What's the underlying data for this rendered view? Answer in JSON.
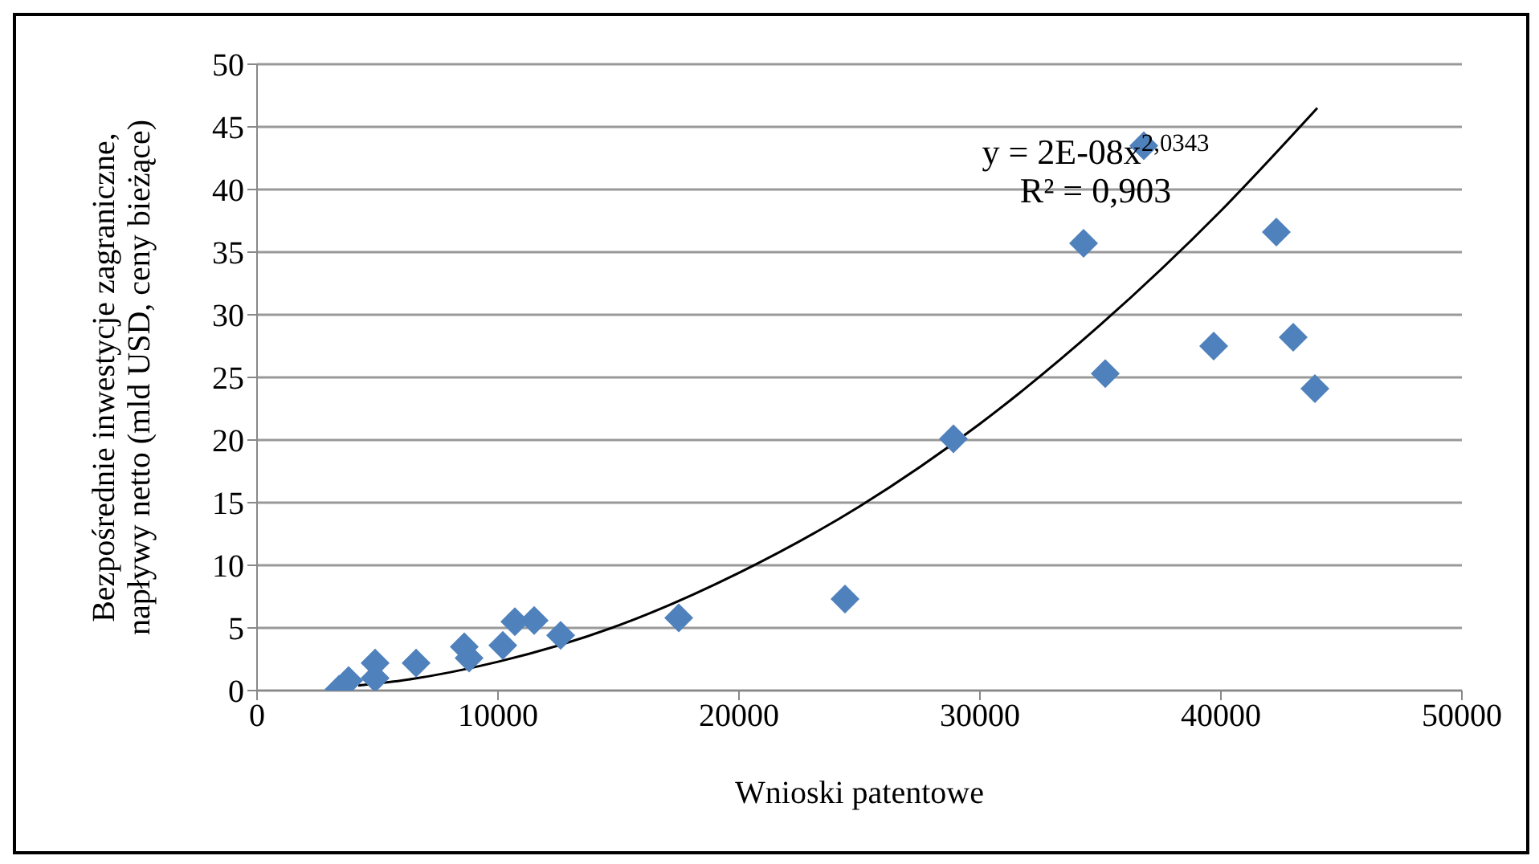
{
  "chart_data": {
    "type": "scatter",
    "xlabel": "Wnioski patentowe",
    "ylabel": "Bezpośrednie inwestycje zagraniczne, napływy netto (mld USD, ceny bieżące)",
    "annotations": [
      "y = 2E-08x$^{2,0343}$",
      "R² = 0,903"
    ],
    "series": [
      {
        "color": "#4f81bd",
        "marker": "diamond",
        "x": [
          3400,
          3800,
          4900,
          4900,
          6600,
          8600,
          8800,
          10200,
          10700,
          11500,
          12600,
          17500,
          24400,
          28900,
          34300,
          35200,
          36800,
          39700,
          42300,
          43000,
          43900
        ],
        "values": [
          0.1,
          0.8,
          2.2,
          1.0,
          2.2,
          3.5,
          2.6,
          3.6,
          5.5,
          5.6,
          4.4,
          5.8,
          7.3,
          20.1,
          35.7,
          25.3,
          43.5,
          27.5,
          36.6,
          28.2,
          24.1
        ]
      },
      {
        "type": "line",
        "color": "#000000",
        "marker": "none",
        "line_style": "solid",
        "x": [
          4200,
          6000,
          10000,
          15000,
          20000,
          25000,
          30000,
          35000,
          40000,
          44000
        ],
        "values": [
          0.4,
          0.8,
          2.3,
          5.2,
          9.4,
          14.7,
          21.3,
          29.2,
          38.3,
          46.5
        ]
      }
    ],
    "xlim": [
      0,
      50000
    ],
    "xticks": [
      0,
      10000,
      20000,
      30000,
      40000,
      50000
    ],
    "ylim": [
      0,
      50
    ],
    "yticks": [
      0,
      5,
      10,
      15,
      20,
      25,
      30,
      35,
      40,
      45,
      50
    ],
    "grid": "y",
    "legend": false
  }
}
